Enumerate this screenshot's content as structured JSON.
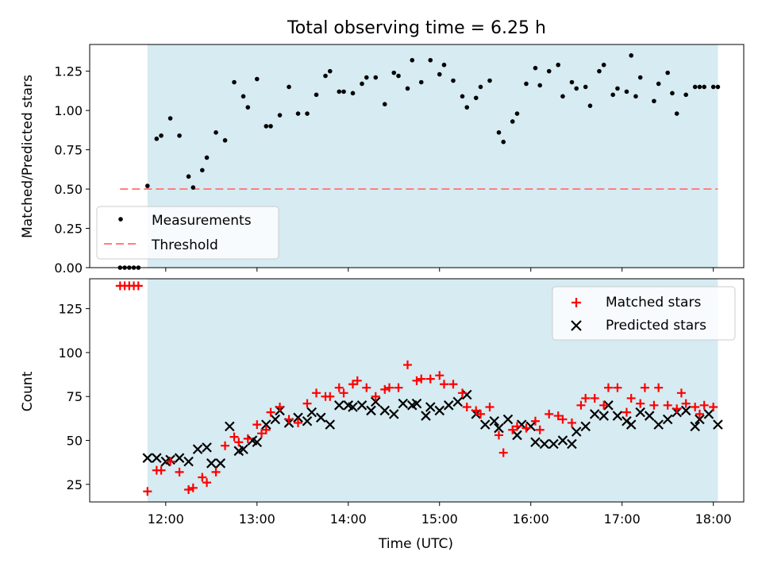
{
  "chart_data": [
    {
      "type": "scatter",
      "title": "Total observing time = 6.25 h",
      "xlabel": "",
      "ylabel": "Matched/Predicted stars",
      "ylim": [
        0,
        1.42
      ],
      "yticks": [
        "0.00",
        "0.25",
        "0.50",
        "0.75",
        "1.00",
        "1.25"
      ],
      "xlim": [
        11.1667,
        18.3333
      ],
      "shaded_span": [
        11.8,
        18.05
      ],
      "shade_color": "#add8e6",
      "threshold": {
        "label": "Threshold",
        "value": 0.5,
        "x_range": [
          11.5,
          18.05
        ],
        "color": "#ff7f7f"
      },
      "legend": {
        "position": "lower-left",
        "entries": [
          "Measurements",
          "Threshold"
        ]
      },
      "series": [
        {
          "name": "Measurements",
          "color": "#000000",
          "marker": "dot",
          "x": [
            11.5,
            11.55,
            11.6,
            11.65,
            11.7,
            11.8,
            11.9,
            11.95,
            12.05,
            12.15,
            12.25,
            12.3,
            12.4,
            12.45,
            12.55,
            12.65,
            12.75,
            12.85,
            12.9,
            13.0,
            13.1,
            13.15,
            13.25,
            13.35,
            13.45,
            13.55,
            13.65,
            13.75,
            13.8,
            13.9,
            13.95,
            14.05,
            14.15,
            14.2,
            14.3,
            14.4,
            14.5,
            14.55,
            14.65,
            14.7,
            14.8,
            14.9,
            15.0,
            15.05,
            15.15,
            15.25,
            15.3,
            15.4,
            15.45,
            15.55,
            15.65,
            15.7,
            15.8,
            15.85,
            15.95,
            16.05,
            16.1,
            16.2,
            16.3,
            16.35,
            16.45,
            16.5,
            16.6,
            16.65,
            16.75,
            16.8,
            16.9,
            16.95,
            17.05,
            17.1,
            17.15,
            17.2,
            17.35,
            17.4,
            17.5,
            17.55,
            17.6,
            17.7,
            17.8,
            17.85,
            17.9,
            18.0,
            18.05
          ],
          "y": [
            0.0,
            0.0,
            0.0,
            0.0,
            0.0,
            0.52,
            0.82,
            0.84,
            0.95,
            0.84,
            0.58,
            0.51,
            0.62,
            0.7,
            0.86,
            0.81,
            1.18,
            1.09,
            1.02,
            1.2,
            0.9,
            0.9,
            0.97,
            1.15,
            0.98,
            0.98,
            1.1,
            1.22,
            1.25,
            1.12,
            1.12,
            1.11,
            1.17,
            1.21,
            1.21,
            1.04,
            1.24,
            1.22,
            1.14,
            1.32,
            1.18,
            1.32,
            1.23,
            1.29,
            1.19,
            1.09,
            1.02,
            1.08,
            1.15,
            1.19,
            0.86,
            0.8,
            0.93,
            0.98,
            1.17,
            1.27,
            1.16,
            1.25,
            1.29,
            1.09,
            1.18,
            1.14,
            1.15,
            1.03,
            1.25,
            1.29,
            1.1,
            1.14,
            1.12,
            1.35,
            1.09,
            1.21,
            1.06,
            1.17,
            1.24,
            1.11,
            0.98,
            1.1,
            1.15,
            1.15,
            1.15,
            1.15,
            1.15
          ]
        }
      ]
    },
    {
      "type": "scatter",
      "title": "",
      "xlabel": "Time (UTC)",
      "ylabel": "Count",
      "ylim": [
        15,
        142
      ],
      "yticks": [
        "25",
        "50",
        "75",
        "100",
        "125"
      ],
      "xlim": [
        11.1667,
        18.3333
      ],
      "xticks": [
        "12:00",
        "13:00",
        "14:00",
        "15:00",
        "16:00",
        "17:00",
        "18:00"
      ],
      "shaded_span": [
        11.8,
        18.05
      ],
      "legend": {
        "position": "upper-right",
        "entries": [
          "Matched stars",
          "Predicted stars"
        ]
      },
      "series": [
        {
          "name": "Matched stars",
          "color": "#ff0000",
          "marker": "plus",
          "x": [
            11.5,
            11.55,
            11.6,
            11.65,
            11.7,
            11.8,
            11.9,
            11.95,
            12.05,
            12.15,
            12.25,
            12.3,
            12.4,
            12.45,
            12.55,
            12.65,
            12.75,
            12.8,
            12.9,
            13.0,
            13.05,
            13.1,
            13.15,
            13.25,
            13.35,
            13.45,
            13.55,
            13.65,
            13.75,
            13.8,
            13.9,
            13.95,
            14.05,
            14.1,
            14.2,
            14.3,
            14.4,
            14.45,
            14.55,
            14.65,
            14.75,
            14.8,
            14.9,
            15.0,
            15.05,
            15.15,
            15.25,
            15.3,
            15.4,
            15.45,
            15.55,
            15.65,
            15.7,
            15.8,
            15.85,
            15.95,
            16.05,
            16.1,
            16.2,
            16.3,
            16.35,
            16.45,
            16.55,
            16.6,
            16.7,
            16.8,
            16.85,
            16.95,
            17.05,
            17.1,
            17.2,
            17.25,
            17.35,
            17.4,
            17.5,
            17.6,
            17.65,
            17.7,
            17.8,
            17.85,
            17.9,
            18.0
          ],
          "y": [
            138,
            138,
            138,
            138,
            138,
            21,
            33,
            33,
            38,
            32,
            22,
            23,
            29,
            26,
            32,
            47,
            52,
            49,
            51,
            59,
            54,
            56,
            66,
            69,
            62,
            60,
            71,
            77,
            75,
            75,
            80,
            77,
            82,
            84,
            80,
            75,
            79,
            80,
            80,
            93,
            84,
            85,
            85,
            87,
            82,
            82,
            77,
            69,
            67,
            65,
            69,
            53,
            43,
            56,
            58,
            57,
            61,
            56,
            65,
            64,
            62,
            60,
            70,
            74,
            74,
            70,
            80,
            80,
            66,
            74,
            71,
            80,
            70,
            80,
            70,
            68,
            77,
            71,
            69,
            65,
            70,
            69
          ]
        },
        {
          "name": "Predicted stars",
          "color": "#000000",
          "marker": "x",
          "x": [
            11.8,
            11.9,
            12.0,
            12.05,
            12.15,
            12.25,
            12.35,
            12.45,
            12.5,
            12.6,
            12.7,
            12.8,
            12.85,
            12.95,
            13.0,
            13.1,
            13.2,
            13.25,
            13.35,
            13.45,
            13.55,
            13.6,
            13.7,
            13.8,
            13.9,
            14.0,
            14.05,
            14.15,
            14.25,
            14.3,
            14.4,
            14.5,
            14.6,
            14.7,
            14.75,
            14.85,
            14.9,
            15.0,
            15.1,
            15.2,
            15.3,
            15.4,
            15.5,
            15.6,
            15.65,
            15.75,
            15.85,
            15.9,
            16.0,
            16.05,
            16.15,
            16.25,
            16.35,
            16.45,
            16.5,
            16.6,
            16.7,
            16.8,
            16.85,
            16.95,
            17.05,
            17.1,
            17.2,
            17.3,
            17.4,
            17.5,
            17.6,
            17.7,
            17.8,
            17.85,
            17.95,
            18.05
          ],
          "y": [
            40,
            40,
            38,
            39,
            40,
            38,
            45,
            46,
            37,
            37,
            58,
            44,
            45,
            50,
            49,
            59,
            62,
            67,
            60,
            63,
            61,
            66,
            63,
            59,
            70,
            70,
            69,
            70,
            67,
            72,
            67,
            65,
            71,
            70,
            71,
            64,
            69,
            67,
            70,
            72,
            76,
            65,
            59,
            61,
            57,
            62,
            53,
            59,
            58,
            49,
            48,
            48,
            50,
            48,
            55,
            58,
            65,
            64,
            70,
            64,
            61,
            59,
            66,
            64,
            59,
            62,
            66,
            67,
            58,
            62,
            65,
            59
          ]
        }
      ]
    }
  ]
}
